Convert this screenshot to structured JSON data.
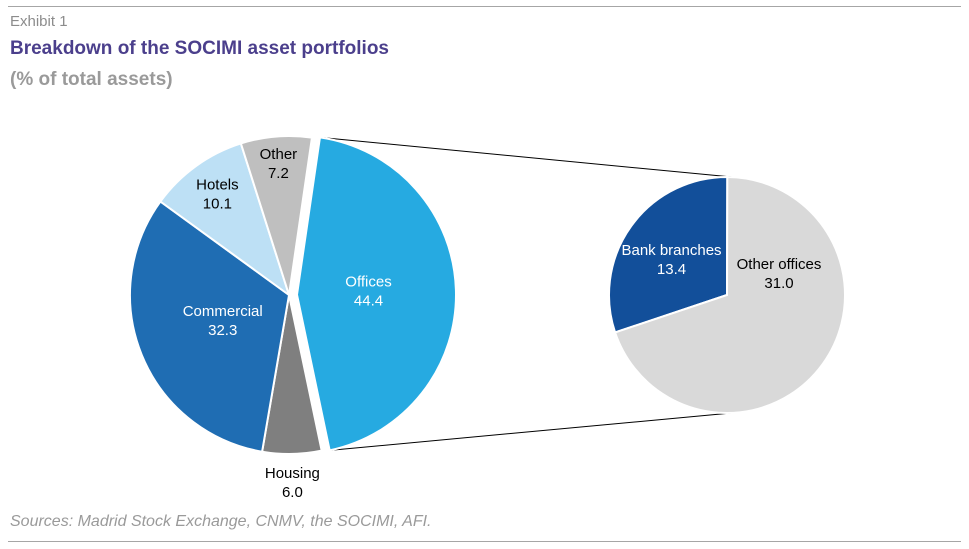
{
  "header": {
    "exhibit": "Exhibit 1",
    "title": "Breakdown of the SOCIMI asset portfolios",
    "subtitle": "(% of total assets)"
  },
  "footer": {
    "source": "Sources: Madrid Stock Exchange, CNMV, the SOCIMI, AFI."
  },
  "chart_data": [
    {
      "type": "pie",
      "title": "",
      "categories": [
        "Offices",
        "Housing",
        "Commercial",
        "Hotels",
        "Other"
      ],
      "values": [
        44.4,
        6.0,
        32.3,
        10.1,
        7.2
      ],
      "colors": [
        "#26aae1",
        "#7f7f7f",
        "#1f6db3",
        "#bde0f5",
        "#bfbfbf"
      ],
      "label_colors": [
        "#ffffff",
        "#000000",
        "#ffffff",
        "#000000",
        "#000000"
      ],
      "exploded_slice": "Offices"
    },
    {
      "type": "pie",
      "title": "",
      "categories": [
        "Other offices",
        "Bank branches"
      ],
      "values": [
        31.0,
        13.4
      ],
      "colors": [
        "#d9d9d9",
        "#124f9a"
      ],
      "label_colors": [
        "#000000",
        "#ffffff"
      ],
      "breakdown_of": "Offices"
    }
  ]
}
